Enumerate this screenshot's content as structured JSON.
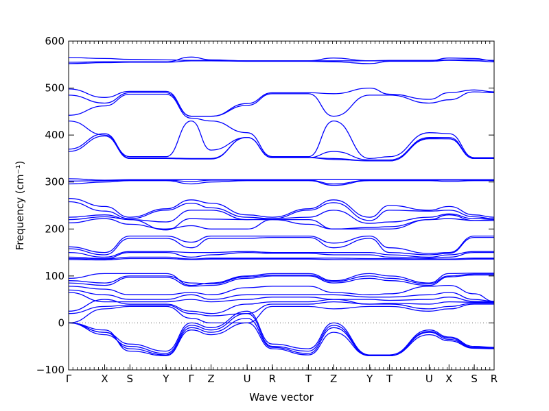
{
  "chart_data": {
    "type": "line",
    "xlabel": "Wave vector",
    "ylabel": "Frequency (cm⁻¹)",
    "ylim": [
      -100,
      600
    ],
    "yticks": [
      -100,
      0,
      100,
      200,
      300,
      400,
      500,
      600
    ],
    "grid": false,
    "zero_line": true,
    "line_color": "#0000ff",
    "k_points": [
      {
        "label": "Γ",
        "x": 0.0
      },
      {
        "label": "X",
        "x": 1.0
      },
      {
        "label": "S",
        "x": 1.7
      },
      {
        "label": "Y",
        "x": 2.7
      },
      {
        "label": "Γ",
        "x": 3.4
      },
      {
        "label": "Z",
        "x": 3.95
      },
      {
        "label": "U",
        "x": 4.95
      },
      {
        "label": "R",
        "x": 5.65
      },
      {
        "label": "T",
        "x": 6.65
      },
      {
        "label": "Z",
        "x": 7.35
      },
      {
        "label": "Y",
        "x": 8.35
      },
      {
        "label": "T",
        "x": 8.9
      },
      {
        "label": "U",
        "x": 10.0
      },
      {
        "label": "X",
        "x": 10.55
      },
      {
        "label": "S",
        "x": 11.25
      },
      {
        "label": "R",
        "x": 11.8
      }
    ],
    "xlim": [
      0,
      11.8
    ],
    "series": [
      {
        "values": [
          565,
          563,
          561,
          560,
          559,
          559,
          558,
          558,
          558,
          558,
          558,
          559,
          559,
          560,
          560,
          559
        ]
      },
      {
        "values": [
          555,
          556,
          556,
          556,
          566,
          560,
          558,
          558,
          558,
          564,
          558,
          558,
          558,
          564,
          563,
          558
        ]
      },
      {
        "values": [
          552,
          554,
          555,
          555,
          558,
          558,
          557,
          557,
          557,
          556,
          552,
          557,
          557,
          559,
          558,
          556
        ]
      },
      {
        "values": [
          498,
          480,
          493,
          493,
          440,
          440,
          467,
          490,
          490,
          488,
          500,
          487,
          476,
          490,
          496,
          492
        ]
      },
      {
        "values": [
          485,
          468,
          490,
          490,
          440,
          440,
          463,
          488,
          488,
          440,
          485,
          485,
          468,
          475,
          492,
          490
        ]
      },
      {
        "values": [
          442,
          462,
          487,
          487,
          436,
          430,
          405,
          354,
          354,
          430,
          350,
          354,
          405,
          403,
          352,
          352
        ]
      },
      {
        "values": [
          430,
          400,
          354,
          354,
          430,
          368,
          395,
          352,
          352,
          365,
          347,
          347,
          395,
          395,
          350,
          350
        ]
      },
      {
        "values": [
          370,
          403,
          351,
          351,
          350,
          350,
          395,
          352,
          352,
          350,
          345,
          345,
          393,
          392,
          350,
          350
        ]
      },
      {
        "values": [
          365,
          398,
          350,
          350,
          349,
          349,
          395,
          352,
          352,
          348,
          345,
          345,
          392,
          392,
          350,
          350
        ]
      },
      {
        "values": [
          307,
          304,
          305,
          305,
          305,
          305,
          305,
          305,
          305,
          305,
          305,
          305,
          305,
          305,
          305,
          305
        ]
      },
      {
        "values": [
          302,
          303,
          304,
          304,
          301,
          304,
          304,
          304,
          304,
          296,
          304,
          304,
          304,
          304,
          304,
          304
        ]
      },
      {
        "values": [
          296,
          300,
          303,
          303,
          296,
          300,
          303,
          303,
          303,
          293,
          303,
          303,
          303,
          301,
          303,
          303
        ]
      },
      {
        "values": [
          265,
          248,
          225,
          243,
          262,
          255,
          230,
          225,
          243,
          262,
          225,
          250,
          240,
          248,
          230,
          225
        ]
      },
      {
        "values": [
          258,
          238,
          222,
          240,
          255,
          245,
          225,
          222,
          240,
          256,
          218,
          240,
          238,
          240,
          226,
          222
        ]
      },
      {
        "values": [
          225,
          230,
          220,
          215,
          240,
          240,
          220,
          222,
          225,
          240,
          212,
          215,
          225,
          232,
          222,
          222
        ]
      },
      {
        "values": [
          220,
          226,
          220,
          198,
          222,
          221,
          220,
          220,
          220,
          200,
          203,
          205,
          220,
          230,
          218,
          220
        ]
      },
      {
        "values": [
          213,
          222,
          210,
          200,
          207,
          200,
          200,
          220,
          210,
          200,
          200,
          200,
          220,
          222,
          218,
          218
        ]
      },
      {
        "values": [
          162,
          150,
          185,
          185,
          172,
          185,
          185,
          185,
          185,
          170,
          185,
          160,
          148,
          150,
          185,
          185
        ]
      },
      {
        "values": [
          158,
          145,
          180,
          180,
          160,
          180,
          180,
          182,
          182,
          160,
          180,
          150,
          145,
          148,
          182,
          182
        ]
      },
      {
        "values": [
          150,
          140,
          152,
          152,
          150,
          150,
          152,
          150,
          150,
          150,
          150,
          145,
          140,
          145,
          152,
          152
        ]
      },
      {
        "values": [
          140,
          137,
          150,
          150,
          140,
          145,
          150,
          148,
          148,
          145,
          145,
          140,
          138,
          140,
          150,
          150
        ]
      },
      {
        "values": [
          137,
          136,
          140,
          140,
          136,
          138,
          138,
          138,
          138,
          138,
          137,
          137,
          136,
          136,
          138,
          138
        ]
      },
      {
        "values": [
          135,
          134,
          137,
          137,
          135,
          136,
          136,
          136,
          136,
          135,
          135,
          135,
          135,
          135,
          136,
          136
        ]
      },
      {
        "values": [
          95,
          105,
          105,
          105,
          80,
          85,
          100,
          105,
          105,
          90,
          105,
          100,
          85,
          105,
          106,
          106
        ]
      },
      {
        "values": [
          90,
          85,
          100,
          100,
          85,
          83,
          98,
          102,
          102,
          88,
          100,
          95,
          83,
          100,
          104,
          104
        ]
      },
      {
        "values": [
          85,
          80,
          97,
          97,
          78,
          80,
          95,
          100,
          100,
          85,
          95,
          90,
          80,
          98,
          102,
          102
        ]
      },
      {
        "values": [
          78,
          72,
          60,
          60,
          65,
          60,
          75,
          78,
          78,
          65,
          60,
          62,
          78,
          80,
          62,
          46
        ]
      },
      {
        "values": [
          70,
          60,
          50,
          50,
          60,
          50,
          60,
          60,
          60,
          60,
          55,
          55,
          60,
          65,
          50,
          46
        ]
      },
      {
        "values": [
          65,
          45,
          45,
          45,
          50,
          45,
          50,
          55,
          55,
          50,
          50,
          48,
          50,
          55,
          46,
          45
        ]
      },
      {
        "values": [
          25,
          50,
          40,
          40,
          25,
          20,
          40,
          45,
          45,
          50,
          40,
          42,
          40,
          45,
          44,
          44
        ]
      },
      {
        "values": [
          20,
          35,
          38,
          38,
          20,
          15,
          20,
          40,
          40,
          45,
          40,
          40,
          30,
          35,
          42,
          42
        ]
      },
      {
        "values": [
          0,
          30,
          35,
          35,
          10,
          0,
          0,
          35,
          35,
          30,
          35,
          35,
          25,
          30,
          40,
          40
        ]
      },
      {
        "values": [
          0,
          -20,
          -45,
          -60,
          0,
          -10,
          25,
          -45,
          -55,
          0,
          -68,
          -68,
          -15,
          -30,
          -50,
          -52
        ]
      },
      {
        "values": [
          0,
          -25,
          -50,
          -65,
          -5,
          -15,
          20,
          -50,
          -60,
          -5,
          -70,
          -70,
          -18,
          -32,
          -52,
          -53
        ]
      },
      {
        "values": [
          0,
          -20,
          -55,
          -68,
          -10,
          -20,
          10,
          -52,
          -65,
          -10,
          -70,
          -70,
          -20,
          -35,
          -53,
          -54
        ]
      },
      {
        "values": [
          0,
          -15,
          -60,
          -70,
          -15,
          -25,
          0,
          -55,
          -68,
          -20,
          -70,
          -70,
          -25,
          -38,
          -54,
          -55
        ]
      }
    ]
  }
}
